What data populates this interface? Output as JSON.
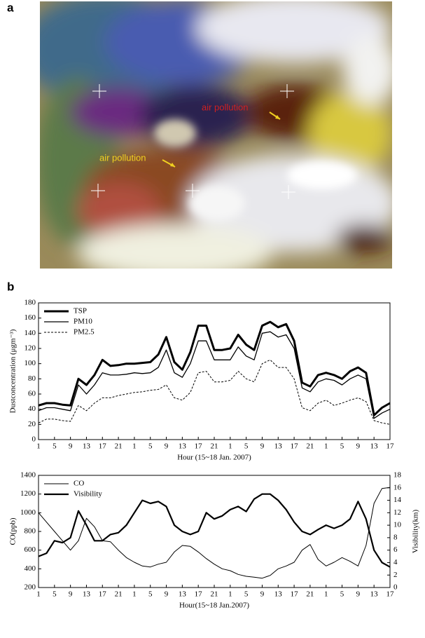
{
  "figure": {
    "panel_a": {
      "label": "a",
      "annotations": [
        "air pollution",
        "air pollution"
      ]
    },
    "panel_b": {
      "label": "b"
    }
  },
  "chart_data": [
    {
      "type": "line",
      "ylabel": "Dustconcentration (μgm⁻³)",
      "xlabel": "Hour (15~18 Jan. 2007)",
      "legend": "upper left",
      "x": [
        0,
        2,
        4,
        6,
        8,
        10,
        12,
        14,
        16,
        18,
        20,
        22,
        24,
        26,
        28,
        30,
        32,
        34,
        36,
        38,
        40,
        42,
        44,
        46,
        48,
        50,
        52,
        54,
        56,
        58,
        60,
        62,
        64,
        66,
        68,
        70,
        72,
        74,
        76,
        78,
        80,
        82,
        84,
        86,
        88
      ],
      "series": [
        {
          "name": "TSP",
          "color": "#000000",
          "values": [
            45,
            48,
            48,
            46,
            45,
            80,
            72,
            85,
            105,
            97,
            98,
            100,
            100,
            101,
            102,
            112,
            135,
            102,
            92,
            115,
            150,
            150,
            118,
            118,
            120,
            138,
            125,
            118,
            150,
            155,
            148,
            152,
            130,
            75,
            70,
            85,
            88,
            85,
            80,
            90,
            95,
            88,
            32,
            42,
            48
          ]
        },
        {
          "name": "PM10",
          "color": "#000000",
          "values": [
            38,
            42,
            42,
            40,
            38,
            72,
            60,
            72,
            88,
            85,
            85,
            86,
            88,
            87,
            88,
            95,
            118,
            88,
            82,
            100,
            130,
            130,
            105,
            105,
            105,
            122,
            110,
            105,
            140,
            142,
            135,
            138,
            120,
            68,
            63,
            76,
            80,
            78,
            72,
            80,
            85,
            80,
            28,
            35,
            40
          ]
        },
        {
          "name": "PM2.5",
          "color": "#000000",
          "values": [
            22,
            27,
            27,
            25,
            24,
            45,
            38,
            48,
            55,
            55,
            58,
            60,
            62,
            63,
            65,
            66,
            72,
            55,
            52,
            62,
            88,
            90,
            76,
            76,
            78,
            90,
            80,
            76,
            100,
            105,
            95,
            95,
            80,
            42,
            38,
            48,
            52,
            45,
            48,
            52,
            55,
            50,
            25,
            22,
            20
          ]
        }
      ],
      "xlim": [
        0,
        88
      ],
      "xticks": [
        {
          "value": 0,
          "label": "1"
        },
        {
          "value": 4,
          "label": "5"
        },
        {
          "value": 8,
          "label": "9"
        },
        {
          "value": 12,
          "label": "13"
        },
        {
          "value": 16,
          "label": "17"
        },
        {
          "value": 20,
          "label": "21"
        },
        {
          "value": 24,
          "label": "1"
        },
        {
          "value": 28,
          "label": "5"
        },
        {
          "value": 32,
          "label": "9"
        },
        {
          "value": 36,
          "label": "13"
        },
        {
          "value": 40,
          "label": "17"
        },
        {
          "value": 44,
          "label": "21"
        },
        {
          "value": 48,
          "label": "1"
        },
        {
          "value": 52,
          "label": "5"
        },
        {
          "value": 56,
          "label": "9"
        },
        {
          "value": 60,
          "label": "13"
        },
        {
          "value": 64,
          "label": "17"
        },
        {
          "value": 68,
          "label": "21"
        },
        {
          "value": 72,
          "label": "1"
        },
        {
          "value": 76,
          "label": "5"
        },
        {
          "value": 80,
          "label": "9"
        },
        {
          "value": 84,
          "label": "13"
        },
        {
          "value": 88,
          "label": "17"
        }
      ],
      "ylim": [
        0,
        180
      ],
      "yticks": [
        0,
        20,
        40,
        60,
        80,
        100,
        120,
        140,
        160,
        180
      ]
    },
    {
      "type": "line",
      "ylabel": "CO(ppb)",
      "y2label": "Visibility(km)",
      "xlabel": "Hour(15~18 Jan.2007)",
      "legend": "upper left",
      "x": [
        0,
        2,
        4,
        6,
        8,
        10,
        12,
        14,
        16,
        18,
        20,
        22,
        24,
        26,
        28,
        30,
        32,
        34,
        36,
        38,
        40,
        42,
        44,
        46,
        48,
        50,
        52,
        54,
        56,
        58,
        60,
        62,
        64,
        66,
        68,
        70,
        72,
        74,
        76,
        78,
        80,
        82,
        84,
        86,
        88
      ],
      "series": [
        {
          "name": "CO",
          "color": "#000000",
          "values": [
            1000,
            900,
            800,
            700,
            600,
            700,
            940,
            850,
            700,
            690,
            600,
            520,
            470,
            430,
            420,
            450,
            470,
            580,
            650,
            640,
            580,
            510,
            450,
            400,
            380,
            340,
            320,
            310,
            300,
            330,
            400,
            430,
            470,
            600,
            660,
            500,
            430,
            470,
            520,
            480,
            430,
            650,
            1100,
            1260,
            1270
          ]
        },
        {
          "name": "Visibility",
          "color": "#000000",
          "axis": "y2",
          "values": [
            5,
            5.5,
            7.5,
            7.2,
            8,
            12.3,
            10,
            7.5,
            7.5,
            8.5,
            8.8,
            10,
            12,
            14,
            13.5,
            13.8,
            13,
            10,
            9,
            8.5,
            9,
            12,
            11,
            11.5,
            12.5,
            13,
            12.2,
            14.2,
            15,
            15,
            14,
            12.5,
            10.5,
            9,
            8.5,
            9.3,
            10,
            9.5,
            10,
            11,
            13.8,
            11,
            6,
            4,
            3.3
          ]
        }
      ],
      "xlim": [
        0,
        88
      ],
      "xticks": [
        {
          "value": 0,
          "label": "1"
        },
        {
          "value": 4,
          "label": "5"
        },
        {
          "value": 8,
          "label": "9"
        },
        {
          "value": 12,
          "label": "13"
        },
        {
          "value": 16,
          "label": "17"
        },
        {
          "value": 20,
          "label": "21"
        },
        {
          "value": 24,
          "label": "1"
        },
        {
          "value": 28,
          "label": "5"
        },
        {
          "value": 32,
          "label": "9"
        },
        {
          "value": 36,
          "label": "13"
        },
        {
          "value": 40,
          "label": "17"
        },
        {
          "value": 44,
          "label": "21"
        },
        {
          "value": 48,
          "label": "1"
        },
        {
          "value": 52,
          "label": "5"
        },
        {
          "value": 56,
          "label": "9"
        },
        {
          "value": 60,
          "label": "13"
        },
        {
          "value": 64,
          "label": "17"
        },
        {
          "value": 68,
          "label": "21"
        },
        {
          "value": 72,
          "label": "1"
        },
        {
          "value": 76,
          "label": "5"
        },
        {
          "value": 80,
          "label": "9"
        },
        {
          "value": 84,
          "label": "13"
        },
        {
          "value": 88,
          "label": "17"
        }
      ],
      "ylim": [
        200,
        1400
      ],
      "yticks": [
        200,
        400,
        600,
        800,
        1000,
        1200,
        1400
      ],
      "y2lim": [
        0,
        18
      ],
      "y2ticks": [
        0,
        2,
        4,
        6,
        8,
        10,
        12,
        14,
        16,
        18
      ]
    }
  ]
}
